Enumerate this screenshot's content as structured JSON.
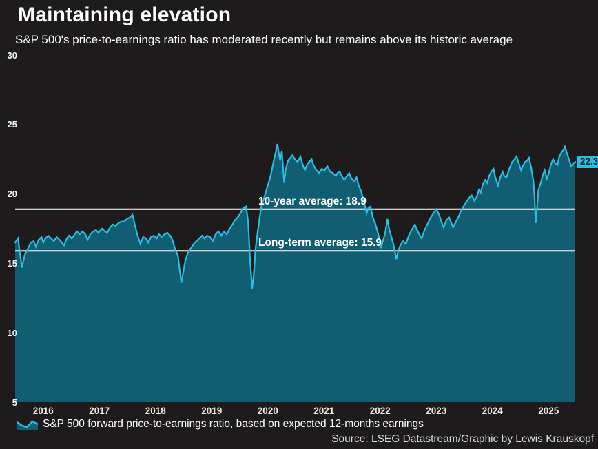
{
  "header": {
    "title": "Maintaining elevation",
    "subtitle": "S&P 500's price-to-earnings ratio has moderated recently but remains above its historic average"
  },
  "footer": {
    "source": "Source: LSEG Datastream/Graphic by Lewis Krauskopf"
  },
  "colors": {
    "background": "#1d1b1b",
    "line": "#29bfe4",
    "fill": "#115e72",
    "reference_line": "#ffffff",
    "badge_bg": "#29bfe4",
    "badge_text": "#0b2531",
    "axis_year_text": "#f0ead8",
    "axis_value_text": "#f5f5f5",
    "annotation_text": "#ffffff",
    "source_text": "#dcdcdc"
  },
  "chart_data": {
    "type": "area",
    "title": "Maintaining elevation",
    "subtitle": "S&P 500's price-to-earnings ratio has moderated recently but remains above its historic average",
    "xlabel": "",
    "ylabel": "",
    "grid": false,
    "legend_position": "bottom-left",
    "legend_label": "S&P 500 forward price-to-earnings ratio, based on expected 12-months earnings",
    "x_domain": [
      2016.0,
      2025.975
    ],
    "ylim": [
      5,
      30
    ],
    "y_ticks": [
      30,
      25,
      20,
      15,
      10,
      5
    ],
    "x_ticks": [
      {
        "label": "2016",
        "t": 2016.5
      },
      {
        "label": "2017",
        "t": 2017.5
      },
      {
        "label": "2018",
        "t": 2018.5
      },
      {
        "label": "2019",
        "t": 2019.5
      },
      {
        "label": "2020",
        "t": 2020.5
      },
      {
        "label": "2021",
        "t": 2021.5
      },
      {
        "label": "2022",
        "t": 2022.5
      },
      {
        "label": "2023",
        "t": 2023.5
      },
      {
        "label": "2024",
        "t": 2024.5
      },
      {
        "label": "2025",
        "t": 2025.5
      }
    ],
    "reference_lines": [
      {
        "label": "10-year average: 18.9",
        "value": 18.9
      },
      {
        "label": "Long-term average: 15.9",
        "value": 15.9
      }
    ],
    "last_value": {
      "label": "22.3",
      "value": 22.3
    },
    "series": [
      {
        "name": "S&P 500 forward price-to-earnings ratio, based on expected 12-months earnings",
        "points": [
          [
            2016.0,
            16.5
          ],
          [
            2016.05,
            16.8
          ],
          [
            2016.09,
            15.6
          ],
          [
            2016.12,
            14.7
          ],
          [
            2016.17,
            15.6
          ],
          [
            2016.22,
            16.0
          ],
          [
            2016.28,
            16.5
          ],
          [
            2016.33,
            16.6
          ],
          [
            2016.37,
            16.2
          ],
          [
            2016.42,
            16.7
          ],
          [
            2016.47,
            16.9
          ],
          [
            2016.5,
            16.5
          ],
          [
            2016.54,
            16.8
          ],
          [
            2016.59,
            17.0
          ],
          [
            2016.64,
            16.8
          ],
          [
            2016.69,
            16.6
          ],
          [
            2016.74,
            16.9
          ],
          [
            2016.79,
            16.7
          ],
          [
            2016.83,
            16.5
          ],
          [
            2016.87,
            16.3
          ],
          [
            2016.92,
            16.8
          ],
          [
            2016.96,
            17.0
          ],
          [
            2017.01,
            16.8
          ],
          [
            2017.06,
            17.1
          ],
          [
            2017.1,
            17.3
          ],
          [
            2017.15,
            17.1
          ],
          [
            2017.2,
            17.3
          ],
          [
            2017.25,
            17.1
          ],
          [
            2017.29,
            16.7
          ],
          [
            2017.34,
            17.1
          ],
          [
            2017.39,
            17.3
          ],
          [
            2017.44,
            17.4
          ],
          [
            2017.48,
            17.2
          ],
          [
            2017.55,
            17.5
          ],
          [
            2017.6,
            17.3
          ],
          [
            2017.64,
            17.2
          ],
          [
            2017.69,
            17.6
          ],
          [
            2017.74,
            17.8
          ],
          [
            2017.79,
            17.7
          ],
          [
            2017.84,
            17.9
          ],
          [
            2017.89,
            18.0
          ],
          [
            2017.94,
            18.0
          ],
          [
            2017.99,
            18.2
          ],
          [
            2018.04,
            18.3
          ],
          [
            2018.09,
            18.5
          ],
          [
            2018.13,
            17.8
          ],
          [
            2018.18,
            17.0
          ],
          [
            2018.23,
            16.4
          ],
          [
            2018.28,
            16.9
          ],
          [
            2018.33,
            16.8
          ],
          [
            2018.37,
            16.5
          ],
          [
            2018.42,
            16.9
          ],
          [
            2018.47,
            17.0
          ],
          [
            2018.52,
            16.8
          ],
          [
            2018.56,
            17.1
          ],
          [
            2018.61,
            16.9
          ],
          [
            2018.66,
            17.1
          ],
          [
            2018.71,
            17.2
          ],
          [
            2018.76,
            17.0
          ],
          [
            2018.8,
            16.7
          ],
          [
            2018.85,
            16.0
          ],
          [
            2018.9,
            15.5
          ],
          [
            2018.93,
            14.5
          ],
          [
            2018.96,
            13.6
          ],
          [
            2018.99,
            14.3
          ],
          [
            2019.03,
            15.2
          ],
          [
            2019.08,
            15.8
          ],
          [
            2019.13,
            16.1
          ],
          [
            2019.18,
            16.4
          ],
          [
            2019.23,
            16.6
          ],
          [
            2019.28,
            16.8
          ],
          [
            2019.33,
            17.0
          ],
          [
            2019.37,
            16.8
          ],
          [
            2019.42,
            17.0
          ],
          [
            2019.47,
            16.9
          ],
          [
            2019.52,
            16.6
          ],
          [
            2019.57,
            17.1
          ],
          [
            2019.62,
            17.3
          ],
          [
            2019.67,
            17.0
          ],
          [
            2019.72,
            17.3
          ],
          [
            2019.77,
            17.1
          ],
          [
            2019.82,
            17.5
          ],
          [
            2019.87,
            17.8
          ],
          [
            2019.91,
            18.1
          ],
          [
            2019.96,
            18.3
          ],
          [
            2020.01,
            18.6
          ],
          [
            2020.06,
            19.0
          ],
          [
            2020.11,
            19.1
          ],
          [
            2020.15,
            18.0
          ],
          [
            2020.18,
            15.5
          ],
          [
            2020.22,
            13.2
          ],
          [
            2020.25,
            14.2
          ],
          [
            2020.28,
            16.0
          ],
          [
            2020.32,
            17.3
          ],
          [
            2020.36,
            18.5
          ],
          [
            2020.39,
            19.2
          ],
          [
            2020.44,
            19.8
          ],
          [
            2020.49,
            20.5
          ],
          [
            2020.53,
            21.0
          ],
          [
            2020.56,
            21.5
          ],
          [
            2020.6,
            22.3
          ],
          [
            2020.64,
            23.0
          ],
          [
            2020.67,
            23.6
          ],
          [
            2020.7,
            22.8
          ],
          [
            2020.72,
            22.4
          ],
          [
            2020.75,
            23.1
          ],
          [
            2020.79,
            20.8
          ],
          [
            2020.82,
            21.8
          ],
          [
            2020.86,
            22.4
          ],
          [
            2020.9,
            22.6
          ],
          [
            2020.94,
            22.8
          ],
          [
            2020.98,
            22.5
          ],
          [
            2021.03,
            22.3
          ],
          [
            2021.08,
            22.7
          ],
          [
            2021.13,
            22.0
          ],
          [
            2021.16,
            21.7
          ],
          [
            2021.21,
            22.2
          ],
          [
            2021.28,
            22.5
          ],
          [
            2021.31,
            22.1
          ],
          [
            2021.35,
            21.8
          ],
          [
            2021.41,
            21.5
          ],
          [
            2021.46,
            21.8
          ],
          [
            2021.51,
            21.7
          ],
          [
            2021.56,
            22.0
          ],
          [
            2021.61,
            21.6
          ],
          [
            2021.66,
            21.5
          ],
          [
            2021.71,
            21.3
          ],
          [
            2021.74,
            21.5
          ],
          [
            2021.78,
            21.6
          ],
          [
            2021.83,
            21.2
          ],
          [
            2021.86,
            21.0
          ],
          [
            2021.91,
            21.3
          ],
          [
            2021.95,
            21.5
          ],
          [
            2021.99,
            21.1
          ],
          [
            2022.04,
            20.9
          ],
          [
            2022.08,
            21.2
          ],
          [
            2022.12,
            20.6
          ],
          [
            2022.16,
            20.2
          ],
          [
            2022.21,
            19.5
          ],
          [
            2022.26,
            18.6
          ],
          [
            2022.29,
            19.0
          ],
          [
            2022.33,
            19.1
          ],
          [
            2022.37,
            18.3
          ],
          [
            2022.41,
            17.9
          ],
          [
            2022.44,
            17.5
          ],
          [
            2022.48,
            16.9
          ],
          [
            2022.51,
            16.1
          ],
          [
            2022.55,
            16.6
          ],
          [
            2022.59,
            17.2
          ],
          [
            2022.63,
            18.2
          ],
          [
            2022.66,
            17.5
          ],
          [
            2022.7,
            16.9
          ],
          [
            2022.74,
            16.3
          ],
          [
            2022.79,
            15.3
          ],
          [
            2022.82,
            15.9
          ],
          [
            2022.86,
            16.3
          ],
          [
            2022.91,
            16.6
          ],
          [
            2022.96,
            16.4
          ],
          [
            2023.01,
            17.0
          ],
          [
            2023.06,
            17.4
          ],
          [
            2023.12,
            17.8
          ],
          [
            2023.17,
            17.3
          ],
          [
            2023.21,
            17.0
          ],
          [
            2023.24,
            16.8
          ],
          [
            2023.29,
            17.4
          ],
          [
            2023.34,
            17.8
          ],
          [
            2023.4,
            18.3
          ],
          [
            2023.45,
            18.6
          ],
          [
            2023.5,
            18.9
          ],
          [
            2023.55,
            18.5
          ],
          [
            2023.6,
            17.9
          ],
          [
            2023.63,
            17.6
          ],
          [
            2023.68,
            18.1
          ],
          [
            2023.73,
            18.3
          ],
          [
            2023.77,
            17.9
          ],
          [
            2023.8,
            17.6
          ],
          [
            2023.85,
            18.0
          ],
          [
            2023.9,
            18.4
          ],
          [
            2023.95,
            18.9
          ],
          [
            2024.0,
            19.2
          ],
          [
            2024.05,
            19.5
          ],
          [
            2024.1,
            19.8
          ],
          [
            2024.13,
            19.9
          ],
          [
            2024.18,
            19.5
          ],
          [
            2024.22,
            19.8
          ],
          [
            2024.26,
            20.3
          ],
          [
            2024.29,
            20.1
          ],
          [
            2024.33,
            20.7
          ],
          [
            2024.37,
            21.0
          ],
          [
            2024.41,
            20.8
          ],
          [
            2024.44,
            21.3
          ],
          [
            2024.48,
            21.6
          ],
          [
            2024.52,
            21.8
          ],
          [
            2024.55,
            21.2
          ],
          [
            2024.6,
            20.6
          ],
          [
            2024.64,
            21.2
          ],
          [
            2024.68,
            21.6
          ],
          [
            2024.71,
            21.3
          ],
          [
            2024.75,
            21.2
          ],
          [
            2024.8,
            21.8
          ],
          [
            2024.85,
            22.3
          ],
          [
            2024.9,
            22.5
          ],
          [
            2024.93,
            22.7
          ],
          [
            2024.97,
            22.2
          ],
          [
            2025.01,
            21.7
          ],
          [
            2025.04,
            22.0
          ],
          [
            2025.08,
            22.3
          ],
          [
            2025.12,
            22.4
          ],
          [
            2025.15,
            22.6
          ],
          [
            2025.19,
            21.9
          ],
          [
            2025.23,
            20.9
          ],
          [
            2025.25,
            19.8
          ],
          [
            2025.27,
            17.9
          ],
          [
            2025.3,
            19.3
          ],
          [
            2025.32,
            20.3
          ],
          [
            2025.36,
            20.8
          ],
          [
            2025.4,
            21.4
          ],
          [
            2025.43,
            21.7
          ],
          [
            2025.47,
            21.1
          ],
          [
            2025.51,
            21.6
          ],
          [
            2025.54,
            22.1
          ],
          [
            2025.58,
            22.5
          ],
          [
            2025.62,
            22.2
          ],
          [
            2025.66,
            22.1
          ],
          [
            2025.69,
            22.7
          ],
          [
            2025.73,
            23.0
          ],
          [
            2025.77,
            23.2
          ],
          [
            2025.79,
            23.4
          ],
          [
            2025.83,
            22.9
          ],
          [
            2025.87,
            22.4
          ],
          [
            2025.9,
            22.0
          ],
          [
            2025.94,
            22.2
          ],
          [
            2025.975,
            22.3
          ]
        ]
      }
    ]
  }
}
